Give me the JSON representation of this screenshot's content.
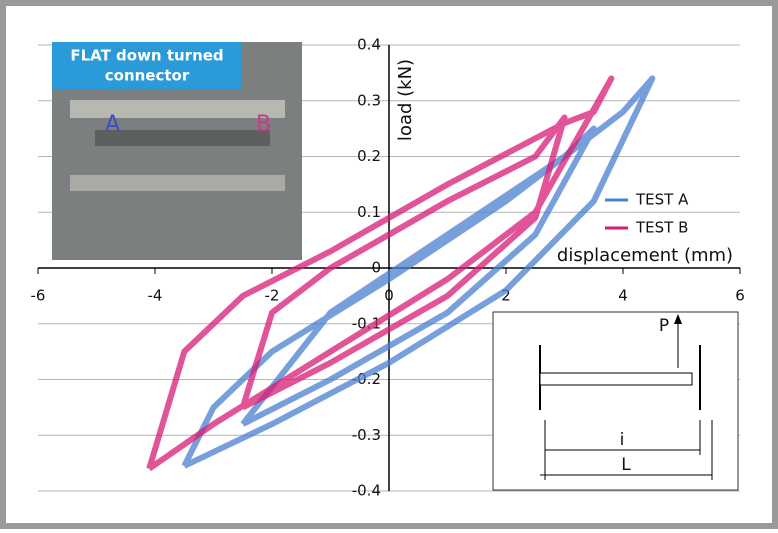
{
  "chart_data": {
    "type": "line",
    "x_label": "displacement (mm)",
    "y_label": "load (kN)",
    "xlim": [
      -6,
      6
    ],
    "xticks": [
      -6,
      -4,
      -2,
      0,
      2,
      4,
      6
    ],
    "ylim": [
      -0.4,
      0.4
    ],
    "yticks": [
      -0.4,
      -0.3,
      -0.2,
      -0.1,
      0,
      0.1,
      0.2,
      0.3,
      0.4
    ],
    "grid": true,
    "legend": "right",
    "series": [
      {
        "name": "TEST A",
        "color": "#4a7fd0",
        "x": [
          -3.5,
          -2,
          0,
          2,
          3.5,
          4.5,
          4,
          2,
          0,
          -2,
          -3,
          -3.5,
          null,
          -2.5,
          -1,
          1,
          2.5,
          3.5,
          3,
          1,
          -1,
          -2.5
        ],
        "values": [
          -0.355,
          -0.28,
          -0.17,
          -0.04,
          0.12,
          0.34,
          0.28,
          0.12,
          -0.02,
          -0.15,
          -0.25,
          -0.355,
          null,
          -0.28,
          -0.2,
          -0.08,
          0.06,
          0.25,
          0.2,
          0.06,
          -0.08,
          -0.28
        ]
      },
      {
        "name": "TEST B",
        "color": "#d81b75",
        "x": [
          -4.1,
          -3,
          -1,
          1,
          2.5,
          3.8,
          3.5,
          3,
          1,
          -1,
          -2.5,
          -3.5,
          -4.1,
          null,
          -2.5,
          -1,
          1,
          2.5,
          3,
          2.5,
          1,
          -1,
          -2,
          -2.5
        ],
        "values": [
          -0.36,
          -0.28,
          -0.15,
          -0.02,
          0.1,
          0.34,
          0.28,
          0.26,
          0.15,
          0.03,
          -0.05,
          -0.15,
          -0.36,
          null,
          -0.25,
          -0.17,
          -0.05,
          0.09,
          0.27,
          0.2,
          0.12,
          0.0,
          -0.08,
          -0.25
        ]
      }
    ],
    "annotations": {
      "photo_caption": [
        "FLAT down turned",
        "connector"
      ],
      "photo_labels": [
        "A",
        "B"
      ],
      "schematic": {
        "load": "P",
        "inner_length": "i",
        "length": "L"
      }
    }
  }
}
